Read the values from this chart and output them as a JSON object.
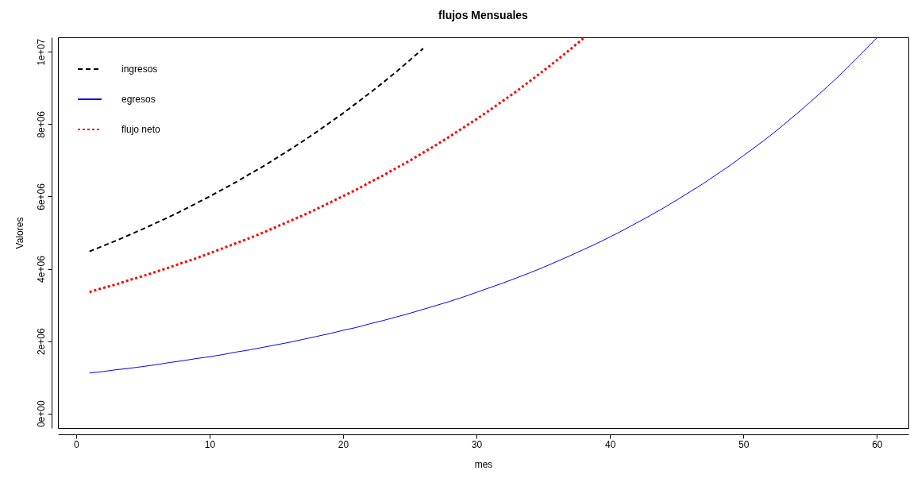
{
  "chart_data": {
    "type": "line",
    "title": "flujos Mensuales",
    "xlabel": "mes",
    "ylabel": "Valores",
    "x": [
      1,
      2,
      3,
      4,
      5,
      6,
      7,
      8,
      9,
      10,
      11,
      12,
      13,
      14,
      15,
      16,
      17,
      18,
      19,
      20,
      21,
      22,
      23,
      24,
      25,
      26,
      27,
      28,
      29,
      30,
      31,
      32,
      33,
      34,
      35,
      36,
      37,
      38,
      39,
      40,
      41,
      42,
      43,
      44,
      45,
      46,
      47,
      48,
      49,
      50,
      51,
      52,
      53,
      54,
      55,
      56,
      57,
      58,
      59,
      60
    ],
    "series": [
      {
        "name": "ingresos",
        "color": "#000000",
        "line_style": "dashed",
        "values": [
          4480000,
          4630000,
          4780000,
          4940000,
          5100000,
          5270000,
          5440000,
          5620000,
          5810000,
          6000000,
          6200000,
          6400000,
          6620000,
          6830000,
          7060000,
          7290000,
          7530000,
          7780000,
          8040000,
          8300000,
          8580000,
          8860000,
          9150000,
          9450000,
          9770000,
          10090000,
          null,
          null,
          null,
          null,
          null,
          null,
          null,
          null,
          null,
          null,
          null,
          null,
          null,
          null,
          null,
          null,
          null,
          null,
          null,
          null,
          null,
          null,
          null,
          null,
          null,
          null,
          null,
          null,
          null,
          null,
          null,
          null,
          null,
          null
        ]
      },
      {
        "name": "egresos",
        "color": "#0000ff",
        "line_style": "solid",
        "values": [
          1120000,
          1160000,
          1210000,
          1250000,
          1300000,
          1350000,
          1410000,
          1460000,
          1520000,
          1570000,
          1630000,
          1700000,
          1760000,
          1830000,
          1900000,
          1970000,
          2050000,
          2130000,
          2210000,
          2300000,
          2380000,
          2480000,
          2570000,
          2670000,
          2770000,
          2880000,
          2990000,
          3100000,
          3220000,
          3350000,
          3480000,
          3610000,
          3750000,
          3890000,
          4040000,
          4200000,
          4360000,
          4530000,
          4700000,
          4880000,
          5070000,
          5270000,
          5470000,
          5680000,
          5900000,
          6130000,
          6360000,
          6610000,
          6860000,
          7130000,
          7400000,
          7680000,
          7980000,
          8290000,
          8610000,
          8940000,
          9280000,
          9640000,
          10010000,
          10390000
        ]
      },
      {
        "name": "flujo neto",
        "color": "#ff0000",
        "line_style": "dotted",
        "values": [
          3360000,
          3470000,
          3570000,
          3690000,
          3800000,
          3920000,
          4040000,
          4170000,
          4290000,
          4430000,
          4570000,
          4710000,
          4850000,
          5000000,
          5160000,
          5320000,
          5480000,
          5650000,
          5830000,
          6010000,
          6190000,
          6390000,
          6580000,
          6790000,
          6990000,
          7210000,
          7430000,
          7660000,
          7900000,
          8140000,
          8390000,
          8650000,
          8910000,
          9190000,
          9470000,
          9760000,
          10060000,
          10370000,
          null,
          null,
          null,
          null,
          null,
          null,
          null,
          null,
          null,
          null,
          null,
          null,
          null,
          null,
          null,
          null,
          null,
          null,
          null,
          null,
          null,
          null
        ]
      }
    ],
    "xlim": [
      -1.36,
      62.36
    ],
    "xticks": [
      0,
      10,
      20,
      30,
      40,
      50,
      60
    ],
    "ylim": [
      -400000,
      10400000
    ],
    "yticks": [
      {
        "value": 0,
        "label": "0e+00"
      },
      {
        "value": 2000000,
        "label": "2e+06"
      },
      {
        "value": 4000000,
        "label": "4e+06"
      },
      {
        "value": 6000000,
        "label": "6e+06"
      },
      {
        "value": 8000000,
        "label": "8e+06"
      },
      {
        "value": 10000000,
        "label": "1e+07"
      }
    ],
    "grid": false,
    "legend": "top left",
    "marker": "none"
  }
}
